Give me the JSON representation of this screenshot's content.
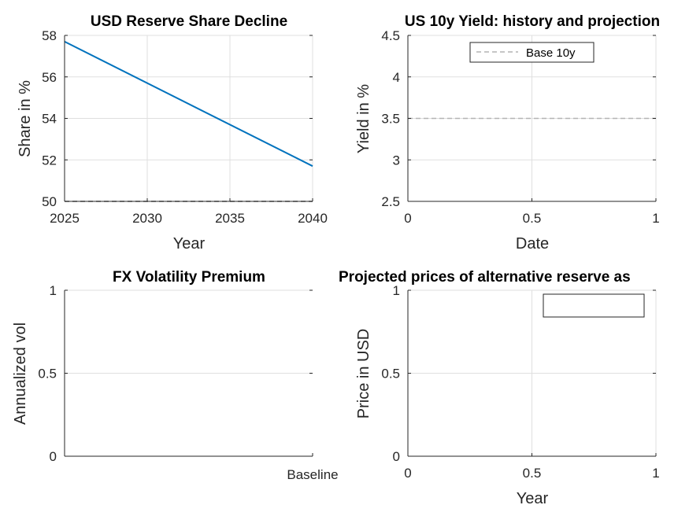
{
  "chart_data": [
    {
      "type": "line",
      "title": "USD Reserve Share Decline",
      "xlabel": "Year",
      "ylabel": "Share in %",
      "xlim": [
        2025,
        2040
      ],
      "ylim": [
        50,
        58
      ],
      "xticks": [
        "2025",
        "2030",
        "2035",
        "2040"
      ],
      "yticks": [
        "50",
        "52",
        "54",
        "56",
        "58"
      ],
      "grid": true,
      "series": [
        {
          "x": [
            2025,
            2040
          ],
          "y": [
            57.7,
            51.7
          ],
          "color": "#0072bd",
          "style": "solid"
        },
        {
          "x": [
            2025,
            2040
          ],
          "y": [
            50,
            50
          ],
          "color": "#4d4d4d",
          "style": "dashed"
        }
      ]
    },
    {
      "type": "line",
      "title": "US 10y Yield: history and projection",
      "xlabel": "Date",
      "ylabel": "Yield in %",
      "xlim": [
        0,
        1
      ],
      "ylim": [
        2.5,
        4.5
      ],
      "xticks": [
        "0",
        "0.5",
        "1"
      ],
      "yticks": [
        "2.5",
        "3",
        "3.5",
        "4",
        "4.5"
      ],
      "grid": true,
      "legend_position": "top",
      "series": [
        {
          "name": "Base 10y",
          "x": [
            0,
            1
          ],
          "y": [
            3.5,
            3.5
          ],
          "color": "#b3b3b3",
          "style": "dashed"
        }
      ]
    },
    {
      "type": "bar",
      "title": "FX Volatility Premium",
      "xlabel": "",
      "ylabel": "Annualized vol",
      "categories": [
        "Baseline"
      ],
      "ylim": [
        0,
        1
      ],
      "yticks": [
        "0",
        "0.5",
        "1"
      ],
      "grid": true
    },
    {
      "type": "line",
      "title": "Projected prices of alternative reserve as",
      "xlabel": "Year",
      "ylabel": "Price in USD",
      "xlim": [
        0,
        1
      ],
      "ylim": [
        0,
        1
      ],
      "xticks": [
        "0",
        "0.5",
        "1"
      ],
      "yticks": [
        "0",
        "0.5",
        "1"
      ],
      "grid": true,
      "legend_position": "top-right",
      "series": []
    }
  ]
}
